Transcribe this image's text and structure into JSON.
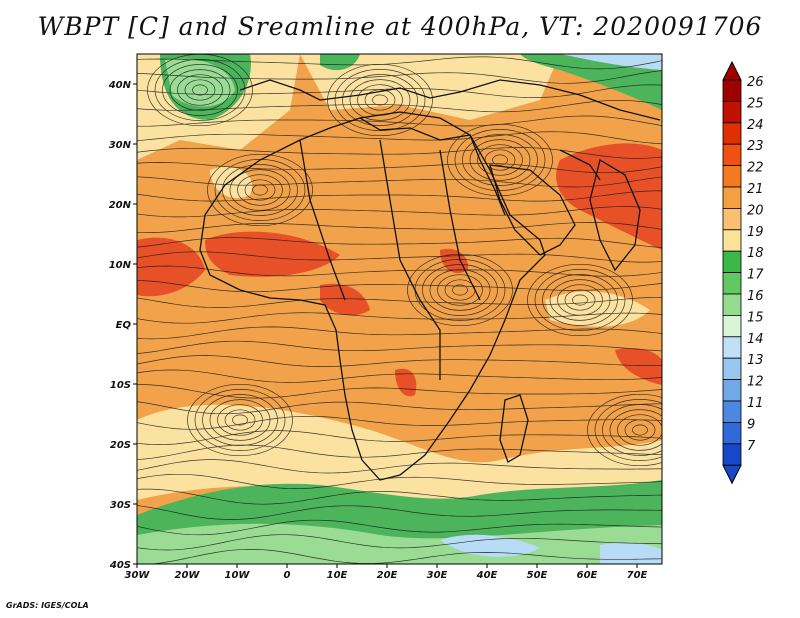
{
  "title": "WBPT [C] and Sreamline at 400hPa, VT: 2020091706",
  "credit": "GrADS: IGES/COLA",
  "lat_labels": [
    "40N",
    "30N",
    "20N",
    "10N",
    "EQ",
    "10S",
    "20S",
    "30S",
    "40S"
  ],
  "lon_labels": [
    "30W",
    "20W",
    "10W",
    "0",
    "10E",
    "20E",
    "30E",
    "40E",
    "50E",
    "60E",
    "70E"
  ],
  "colorbar": {
    "labels": [
      "26",
      "25",
      "24",
      "23",
      "22",
      "21",
      "20",
      "19",
      "18",
      "17",
      "16",
      "15",
      "14",
      "13",
      "12",
      "11",
      "9",
      "7"
    ],
    "colors": [
      "#a00000",
      "#c01000",
      "#e03000",
      "#f05010",
      "#f47a20",
      "#f5a040",
      "#f8c070",
      "#fbe49a",
      "#3cb84a",
      "#62c862",
      "#96dc90",
      "#d8f5d8",
      "#c0e0f8",
      "#98c8f0",
      "#70a8e8",
      "#4c88e0",
      "#2f6ad8",
      "#1848c8"
    ]
  },
  "legend_fill_colors": {
    "orange_main": "#f1a24a",
    "light_yellow": "#fbe2a0",
    "red": "#e85028",
    "green": "#4cb45a",
    "light_green": "#9adc94",
    "light_blue": "#b8dcf6"
  }
}
